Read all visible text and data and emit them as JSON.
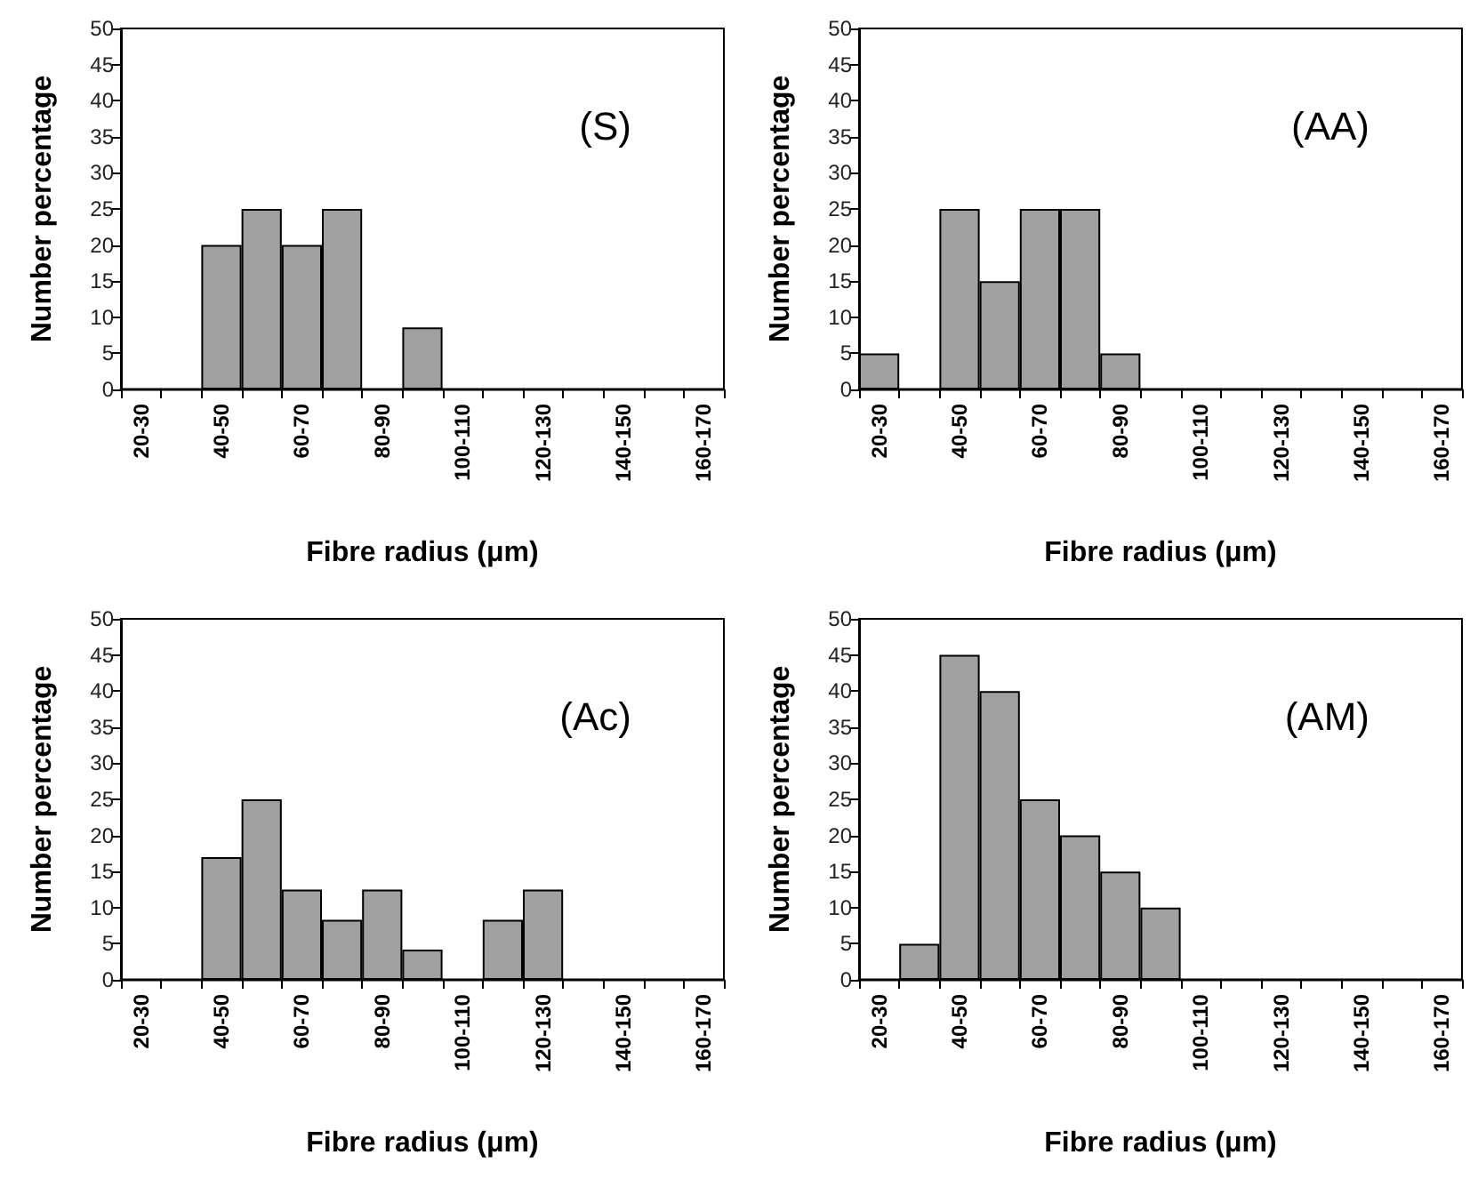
{
  "chart_data": [
    {
      "type": "bar",
      "categories": [
        "20-30",
        null,
        "40-50",
        null,
        "60-70",
        null,
        "80-90",
        null,
        "100-110",
        null,
        "120-130",
        null,
        "140-150",
        null,
        "160-170"
      ],
      "values": [
        0,
        0,
        20,
        25,
        20,
        25,
        0,
        8.6,
        0,
        0,
        0,
        0,
        0,
        0,
        0
      ],
      "color": "#a0a0a0",
      "xlabel": "Fibre radius (μm)",
      "ylabel": "Number percentage",
      "ylim": [
        0,
        50
      ],
      "yticks": [
        0,
        5,
        10,
        15,
        20,
        25,
        30,
        35,
        40,
        45,
        50
      ],
      "annotations": [
        "(S)"
      ],
      "grid": false
    },
    {
      "type": "bar",
      "categories": [
        "20-30",
        null,
        "40-50",
        null,
        "60-70",
        null,
        "80-90",
        null,
        "100-110",
        null,
        "120-130",
        null,
        "140-150",
        null,
        "160-170"
      ],
      "values": [
        5,
        0,
        25,
        15,
        25,
        25,
        5,
        0,
        0,
        0,
        0,
        0,
        0,
        0,
        0
      ],
      "color": "#a0a0a0",
      "xlabel": "Fibre radius (μm)",
      "ylabel": "Number percentage",
      "ylim": [
        0,
        50
      ],
      "yticks": [
        0,
        5,
        10,
        15,
        20,
        25,
        30,
        35,
        40,
        45,
        50
      ],
      "annotations": [
        "(AA)"
      ],
      "grid": false
    },
    {
      "type": "bar",
      "categories": [
        "20-30",
        null,
        "40-50",
        null,
        "60-70",
        null,
        "80-90",
        null,
        "100-110",
        null,
        "120-130",
        null,
        "140-150",
        null,
        "160-170"
      ],
      "values": [
        0,
        0,
        17,
        25,
        12.5,
        8.3,
        12.5,
        4.2,
        0,
        8.3,
        12.5,
        0,
        0,
        0,
        0
      ],
      "color": "#a0a0a0",
      "xlabel": "Fibre radius (μm)",
      "ylabel": "Number percentage",
      "ylim": [
        0,
        50
      ],
      "yticks": [
        0,
        5,
        10,
        15,
        20,
        25,
        30,
        35,
        40,
        45,
        50
      ],
      "annotations": [
        "(Ac)"
      ],
      "grid": false
    },
    {
      "type": "bar",
      "categories": [
        "20-30",
        null,
        "40-50",
        null,
        "60-70",
        null,
        "80-90",
        null,
        "100-110",
        null,
        "120-130",
        null,
        "140-150",
        null,
        "160-170"
      ],
      "values": [
        0,
        5,
        45,
        40,
        25,
        20,
        15,
        10,
        0,
        0,
        0,
        0,
        0,
        0,
        0
      ],
      "color": "#a0a0a0",
      "xlabel": "Fibre radius (μm)",
      "ylabel": "Number percentage",
      "ylim": [
        0,
        50
      ],
      "yticks": [
        0,
        5,
        10,
        15,
        20,
        25,
        30,
        35,
        40,
        45,
        50
      ],
      "annotations": [
        "(AM)"
      ],
      "grid": false
    }
  ]
}
